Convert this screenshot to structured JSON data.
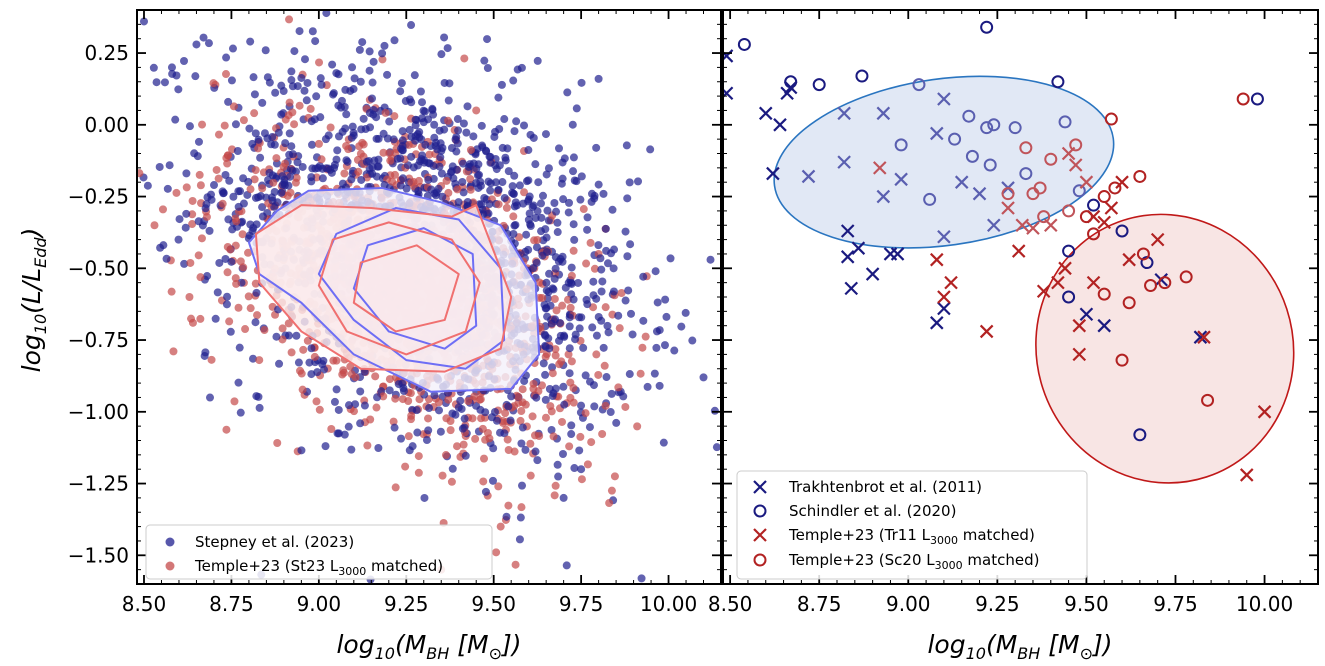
{
  "figure": {
    "ylabel": "log10(L/LEdd)",
    "ylabel_parts": {
      "base": "log",
      "sub": "10",
      "open": "(L/L",
      "sub2": "Edd",
      "close": ")"
    },
    "xlabel_parts": {
      "base": "log",
      "sub": "10",
      "open": "(M",
      "sub2": "BH",
      "mid": " [M",
      "sun": "⊙",
      "close": "])"
    }
  },
  "colors": {
    "stepney": "#1f1f8f",
    "temple": "#c44a4a",
    "navy": "#1a1a80",
    "darkred": "#b22222",
    "contour_blue": "#6e6ef5",
    "contour_red": "#f07070",
    "ellipse_blue_fill": "#dce4f3",
    "ellipse_blue_stroke": "#2a75c0",
    "ellipse_red_fill": "#f7e1df",
    "ellipse_red_stroke": "#c01818"
  },
  "chart_data": [
    {
      "type": "scatter",
      "panel": "left",
      "xlabel": "log10(MBH [M⊙])",
      "ylabel": "log10(L/LEdd)",
      "xlim": [
        8.48,
        10.15
      ],
      "ylim": [
        -1.6,
        0.4
      ],
      "xticks": [
        "8.50",
        "8.75",
        "9.00",
        "9.25",
        "9.50",
        "9.75",
        "10.00"
      ],
      "yticks": [
        "0.25",
        "0.00",
        "−0.25",
        "−0.50",
        "−0.75",
        "−1.00",
        "−1.25",
        "−1.50"
      ],
      "legend_position": "lower-left",
      "series": [
        {
          "name": "Stepney et al. (2023)",
          "marker": "filled-circle",
          "color": "#1f1f8f",
          "distribution": {
            "x_mean": 9.3,
            "x_sd": 0.3,
            "y_mean": -0.45,
            "y_sd": 0.33,
            "corr": -0.35,
            "n": 1700
          },
          "points": [
            [
              8.5,
              0.36
            ],
            [
              8.58,
              0.2
            ],
            [
              8.65,
              0.28
            ],
            [
              10.12,
              -0.47
            ],
            [
              10.1,
              -0.88
            ],
            [
              9.8,
              0.16
            ],
            [
              9.05,
              0.18
            ],
            [
              9.12,
              0.15
            ],
            [
              9.75,
              -1.2
            ],
            [
              9.7,
              -1.3
            ]
          ]
        },
        {
          "name": "Temple+23 (St23 L3000 matched)",
          "name_parts": {
            "pre": "Temple+23 (St23 L",
            "sub": "3000",
            "post": " matched)"
          },
          "marker": "filled-circle",
          "color": "#c44a4a",
          "distribution": {
            "x_mean": 9.25,
            "x_sd": 0.26,
            "y_mean": -0.57,
            "y_sd": 0.28,
            "corr": -0.45,
            "n": 1300
          },
          "points": [
            [
              8.53,
              -0.35
            ],
            [
              8.63,
              -0.6
            ],
            [
              8.64,
              -0.69
            ],
            [
              9.35,
              -1.55
            ],
            [
              9.8,
              -0.45
            ],
            [
              9.45,
              0.05
            ],
            [
              9.52,
              -1.4
            ]
          ]
        }
      ],
      "contours": [
        {
          "name": "Stepney et al. (2023)",
          "color": "#6e6ef5",
          "levels": [
            [
              [
                8.8,
                -0.41
              ],
              [
                8.88,
                -0.3
              ],
              [
                8.97,
                -0.23
              ],
              [
                9.18,
                -0.22
              ],
              [
                9.35,
                -0.27
              ],
              [
                9.52,
                -0.35
              ],
              [
                9.62,
                -0.55
              ],
              [
                9.63,
                -0.8
              ],
              [
                9.55,
                -0.92
              ],
              [
                9.32,
                -0.93
              ],
              [
                9.1,
                -0.8
              ],
              [
                8.95,
                -0.62
              ],
              [
                8.83,
                -0.52
              ]
            ],
            [
              [
                9.05,
                -0.38
              ],
              [
                9.22,
                -0.29
              ],
              [
                9.4,
                -0.33
              ],
              [
                9.52,
                -0.5
              ],
              [
                9.53,
                -0.75
              ],
              [
                9.42,
                -0.85
              ],
              [
                9.25,
                -0.82
              ],
              [
                9.1,
                -0.68
              ],
              [
                9.0,
                -0.52
              ]
            ],
            [
              [
                9.14,
                -0.42
              ],
              [
                9.3,
                -0.36
              ],
              [
                9.44,
                -0.45
              ],
              [
                9.45,
                -0.7
              ],
              [
                9.36,
                -0.78
              ],
              [
                9.2,
                -0.72
              ],
              [
                9.1,
                -0.57
              ]
            ]
          ]
        },
        {
          "name": "Temple+23 (St23 L3000 matched)",
          "color": "#f07070",
          "levels": [
            [
              [
                8.82,
                -0.38
              ],
              [
                8.95,
                -0.28
              ],
              [
                9.15,
                -0.29
              ],
              [
                9.38,
                -0.32
              ],
              [
                9.45,
                -0.28
              ],
              [
                9.55,
                -0.6
              ],
              [
                9.52,
                -0.78
              ],
              [
                9.36,
                -0.86
              ],
              [
                9.12,
                -0.85
              ],
              [
                8.95,
                -0.72
              ],
              [
                8.83,
                -0.55
              ]
            ],
            [
              [
                9.04,
                -0.4
              ],
              [
                9.2,
                -0.34
              ],
              [
                9.38,
                -0.4
              ],
              [
                9.46,
                -0.55
              ],
              [
                9.42,
                -0.72
              ],
              [
                9.25,
                -0.8
              ],
              [
                9.08,
                -0.72
              ],
              [
                9.0,
                -0.56
              ]
            ],
            [
              [
                9.12,
                -0.48
              ],
              [
                9.28,
                -0.42
              ],
              [
                9.4,
                -0.52
              ],
              [
                9.36,
                -0.68
              ],
              [
                9.22,
                -0.72
              ],
              [
                9.1,
                -0.62
              ]
            ]
          ]
        }
      ]
    },
    {
      "type": "scatter",
      "panel": "right",
      "xlabel": "log10(MBH [M⊙])",
      "xlim": [
        8.48,
        10.15
      ],
      "ylim": [
        -1.6,
        0.4
      ],
      "xticks": [
        "8.50",
        "8.75",
        "9.00",
        "9.25",
        "9.50",
        "9.75",
        "10.00"
      ],
      "legend_position": "lower-left",
      "ellipses": [
        {
          "name": "blue",
          "cx": 9.1,
          "cy": -0.13,
          "rx": 0.48,
          "ry": 0.29,
          "rotation_deg": -8,
          "fill": "#dce4f3",
          "stroke": "#2a75c0"
        },
        {
          "name": "red",
          "cx": 9.72,
          "cy": -0.78,
          "rx": 0.36,
          "ry": 0.47,
          "rotation_deg": -18,
          "fill": "#f7e1df",
          "stroke": "#c01818"
        }
      ],
      "series": [
        {
          "name": "Trakhtenbrot et al. (2011)",
          "marker": "x",
          "color": "#1a1a80",
          "points": [
            [
              8.49,
              0.24
            ],
            [
              8.49,
              0.11
            ],
            [
              8.6,
              0.04
            ],
            [
              8.64,
              0.0
            ],
            [
              8.62,
              -0.17
            ],
            [
              8.66,
              0.11
            ],
            [
              8.67,
              0.13
            ],
            [
              8.72,
              -0.18
            ],
            [
              8.82,
              0.04
            ],
            [
              8.82,
              -0.13
            ],
            [
              8.83,
              -0.37
            ],
            [
              8.83,
              -0.46
            ],
            [
              8.84,
              -0.57
            ],
            [
              8.86,
              -0.43
            ],
            [
              8.9,
              -0.52
            ],
            [
              8.93,
              0.04
            ],
            [
              8.93,
              -0.25
            ],
            [
              8.95,
              -0.45
            ],
            [
              8.97,
              -0.45
            ],
            [
              8.98,
              -0.19
            ],
            [
              9.08,
              -0.03
            ],
            [
              9.1,
              0.09
            ],
            [
              9.08,
              -0.69
            ],
            [
              9.1,
              -0.64
            ],
            [
              9.1,
              -0.39
            ],
            [
              9.15,
              -0.2
            ],
            [
              9.2,
              -0.24
            ],
            [
              9.24,
              -0.35
            ],
            [
              9.28,
              -0.22
            ],
            [
              9.5,
              -0.66
            ],
            [
              9.55,
              -0.7
            ],
            [
              9.71,
              -0.54
            ],
            [
              9.82,
              -0.74
            ]
          ]
        },
        {
          "name": "Schindler et al. (2020)",
          "marker": "open-circle",
          "color": "#1a1a80",
          "points": [
            [
              8.54,
              0.28
            ],
            [
              8.67,
              0.15
            ],
            [
              8.75,
              0.14
            ],
            [
              8.87,
              0.17
            ],
            [
              9.03,
              0.14
            ],
            [
              8.98,
              -0.07
            ],
            [
              9.06,
              -0.26
            ],
            [
              9.13,
              -0.05
            ],
            [
              9.17,
              0.03
            ],
            [
              9.22,
              0.34
            ],
            [
              9.22,
              -0.01
            ],
            [
              9.24,
              0.0
            ],
            [
              9.18,
              -0.11
            ],
            [
              9.23,
              -0.14
            ],
            [
              9.3,
              -0.01
            ],
            [
              9.33,
              -0.17
            ],
            [
              9.42,
              0.15
            ],
            [
              9.44,
              0.01
            ],
            [
              9.45,
              -0.44
            ],
            [
              9.45,
              -0.6
            ],
            [
              9.48,
              -0.23
            ],
            [
              9.52,
              -0.28
            ],
            [
              9.6,
              -0.37
            ],
            [
              9.67,
              -0.48
            ],
            [
              9.65,
              -1.08
            ],
            [
              9.98,
              0.09
            ]
          ]
        },
        {
          "name": "Temple+23 (Tr11 L3000 matched)",
          "name_parts": {
            "pre": "Temple+23 (Tr11 L",
            "sub": "3000",
            "post": " matched)"
          },
          "marker": "x",
          "color": "#b22222",
          "points": [
            [
              8.92,
              -0.15
            ],
            [
              9.08,
              -0.47
            ],
            [
              9.12,
              -0.55
            ],
            [
              9.1,
              -0.6
            ],
            [
              9.22,
              -0.72
            ],
            [
              9.28,
              -0.29
            ],
            [
              9.31,
              -0.44
            ],
            [
              9.32,
              -0.35
            ],
            [
              9.35,
              -0.36
            ],
            [
              9.38,
              -0.58
            ],
            [
              9.4,
              -0.35
            ],
            [
              9.42,
              -0.55
            ],
            [
              9.44,
              -0.5
            ],
            [
              9.45,
              -0.1
            ],
            [
              9.47,
              -0.14
            ],
            [
              9.5,
              -0.2
            ],
            [
              9.52,
              -0.32
            ],
            [
              9.55,
              -0.34
            ],
            [
              9.57,
              -0.29
            ],
            [
              9.6,
              -0.2
            ],
            [
              9.62,
              -0.47
            ],
            [
              9.48,
              -0.7
            ],
            [
              9.48,
              -0.8
            ],
            [
              9.52,
              -0.55
            ],
            [
              9.7,
              -0.4
            ],
            [
              9.83,
              -0.74
            ],
            [
              9.95,
              -1.22
            ],
            [
              10.0,
              -1.0
            ]
          ]
        },
        {
          "name": "Temple+23 (Sc20 L3000 matched)",
          "name_parts": {
            "pre": "Temple+23 (Sc20 L",
            "sub": "3000",
            "post": " matched)"
          },
          "marker": "open-circle",
          "color": "#b22222",
          "points": [
            [
              9.28,
              -0.24
            ],
            [
              9.33,
              -0.08
            ],
            [
              9.35,
              -0.24
            ],
            [
              9.37,
              -0.22
            ],
            [
              9.38,
              -0.32
            ],
            [
              9.4,
              -0.12
            ],
            [
              9.45,
              -0.3
            ],
            [
              9.47,
              -0.07
            ],
            [
              9.5,
              -0.32
            ],
            [
              9.52,
              -0.38
            ],
            [
              9.55,
              -0.25
            ],
            [
              9.57,
              0.02
            ],
            [
              9.58,
              -0.22
            ],
            [
              9.55,
              -0.59
            ],
            [
              9.62,
              -0.62
            ],
            [
              9.65,
              -0.18
            ],
            [
              9.6,
              -0.82
            ],
            [
              9.66,
              -0.45
            ],
            [
              9.68,
              -0.56
            ],
            [
              9.72,
              -0.55
            ],
            [
              9.78,
              -0.53
            ],
            [
              9.84,
              -0.96
            ],
            [
              9.94,
              0.09
            ]
          ]
        }
      ]
    }
  ]
}
